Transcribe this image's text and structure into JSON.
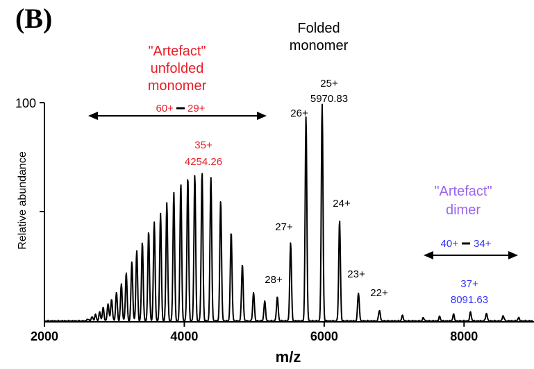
{
  "panel_label": "(B)",
  "colors": {
    "red": "#e8202a",
    "purple": "#9966ee",
    "blue": "#3333ff",
    "black": "#000000"
  },
  "chart_data": {
    "type": "line",
    "xlabel": "m/z",
    "ylabel": "Relative abundance",
    "xlim": [
      2000,
      9000
    ],
    "ylim": [
      0,
      100
    ],
    "x_ticks": [
      "2000",
      "4000",
      "6000",
      "8000"
    ],
    "y_top_label": "100",
    "peaks": [
      {
        "mz": 2620,
        "y": 1
      },
      {
        "mz": 2680,
        "y": 2
      },
      {
        "mz": 2730,
        "y": 3
      },
      {
        "mz": 2790,
        "y": 4
      },
      {
        "mz": 2840,
        "y": 6
      },
      {
        "mz": 2910,
        "y": 8
      },
      {
        "mz": 2960,
        "y": 10
      },
      {
        "mz": 3030,
        "y": 13
      },
      {
        "mz": 3100,
        "y": 17
      },
      {
        "mz": 3170,
        "y": 22
      },
      {
        "mz": 3250,
        "y": 27
      },
      {
        "mz": 3320,
        "y": 32
      },
      {
        "mz": 3400,
        "y": 36
      },
      {
        "mz": 3490,
        "y": 41
      },
      {
        "mz": 3570,
        "y": 45
      },
      {
        "mz": 3660,
        "y": 49
      },
      {
        "mz": 3750,
        "y": 54
      },
      {
        "mz": 3850,
        "y": 59
      },
      {
        "mz": 3950,
        "y": 63
      },
      {
        "mz": 4050,
        "y": 66
      },
      {
        "mz": 4150,
        "y": 67
      },
      {
        "mz": 4254,
        "y": 68
      },
      {
        "mz": 4380,
        "y": 66
      },
      {
        "mz": 4520,
        "y": 55
      },
      {
        "mz": 4670,
        "y": 41
      },
      {
        "mz": 4830,
        "y": 26
      },
      {
        "mz": 4990,
        "y": 13
      },
      {
        "mz": 5150,
        "y": 9
      },
      {
        "mz": 5330,
        "y": 11
      },
      {
        "mz": 5520,
        "y": 36
      },
      {
        "mz": 5740,
        "y": 93
      },
      {
        "mz": 5970.83,
        "y": 99
      },
      {
        "mz": 6220,
        "y": 46
      },
      {
        "mz": 6490,
        "y": 13
      },
      {
        "mz": 6790,
        "y": 5
      },
      {
        "mz": 7120,
        "y": 2.5
      },
      {
        "mz": 7420,
        "y": 1.5
      },
      {
        "mz": 7650,
        "y": 2
      },
      {
        "mz": 7850,
        "y": 3
      },
      {
        "mz": 8091.63,
        "y": 4
      },
      {
        "mz": 8320,
        "y": 3.5
      },
      {
        "mz": 8560,
        "y": 2.5
      },
      {
        "mz": 8780,
        "y": 1.5
      }
    ],
    "annotations": {
      "unfolded_title": [
        "\"Artefact\"",
        "unfolded",
        "monomer"
      ],
      "unfolded_range_start": "60+",
      "unfolded_range_end": "29+",
      "unfolded_peak_charge": "35+",
      "unfolded_peak_mz": "4254.26",
      "folded_title": [
        "Folded",
        "monomer"
      ],
      "folded_peak_charge": "25+",
      "folded_peak_mz": "5970.83",
      "folded_charges": [
        "26+",
        "27+",
        "28+",
        "24+",
        "23+",
        "22+"
      ],
      "dimer_title": [
        "\"Artefact\"",
        "dimer"
      ],
      "dimer_range_start": "40+",
      "dimer_range_end": "34+",
      "dimer_peak_charge": "37+",
      "dimer_peak_mz": "8091.63"
    }
  }
}
